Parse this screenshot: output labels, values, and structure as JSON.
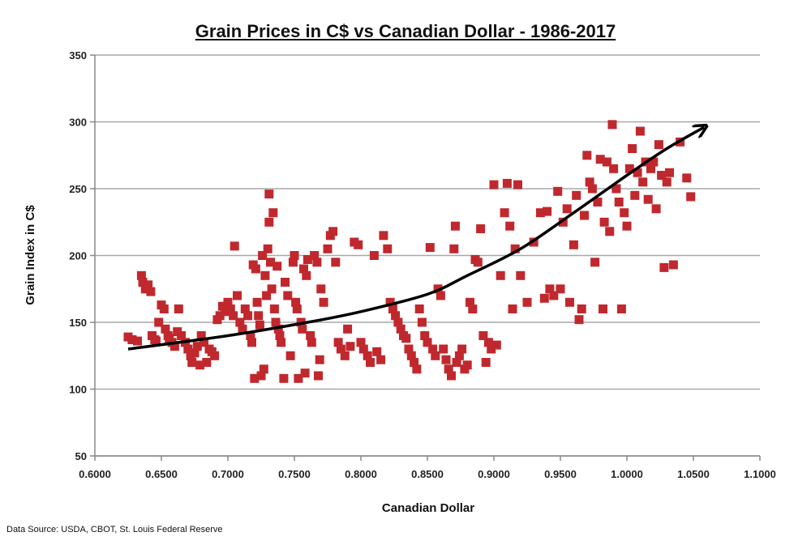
{
  "chart_data": {
    "type": "scatter",
    "title": "Grain Prices in C$ vs Canadian Dollar - 1986-2017",
    "xlabel": "Canadian Dollar",
    "ylabel": "Grain Index in C$",
    "xlim": [
      0.6,
      1.1
    ],
    "ylim": [
      50,
      350
    ],
    "x_ticks": [
      "0.6000",
      "0.6500",
      "0.7000",
      "0.7500",
      "0.8000",
      "0.8500",
      "0.9000",
      "0.9500",
      "1.0000",
      "1.0500",
      "1.1000"
    ],
    "y_ticks": [
      "50",
      "100",
      "150",
      "200",
      "250",
      "300",
      "350"
    ],
    "grid": true,
    "marker_color": "#c0282d",
    "series": [
      {
        "points": [
          [
            0.625,
            139
          ],
          [
            0.628,
            137
          ],
          [
            0.632,
            136
          ],
          [
            0.635,
            185
          ],
          [
            0.636,
            180
          ],
          [
            0.638,
            175
          ],
          [
            0.64,
            178
          ],
          [
            0.642,
            173
          ],
          [
            0.643,
            140
          ],
          [
            0.645,
            137
          ],
          [
            0.646,
            136
          ],
          [
            0.648,
            150
          ],
          [
            0.65,
            163
          ],
          [
            0.652,
            160
          ],
          [
            0.653,
            145
          ],
          [
            0.655,
            140
          ],
          [
            0.656,
            138
          ],
          [
            0.658,
            135
          ],
          [
            0.66,
            132
          ],
          [
            0.662,
            143
          ],
          [
            0.663,
            160
          ],
          [
            0.665,
            140
          ],
          [
            0.668,
            135
          ],
          [
            0.67,
            130
          ],
          [
            0.672,
            125
          ],
          [
            0.673,
            120
          ],
          [
            0.675,
            127
          ],
          [
            0.677,
            132
          ],
          [
            0.679,
            118
          ],
          [
            0.68,
            140
          ],
          [
            0.682,
            135
          ],
          [
            0.684,
            120
          ],
          [
            0.686,
            130
          ],
          [
            0.688,
            128
          ],
          [
            0.69,
            125
          ],
          [
            0.692,
            152
          ],
          [
            0.694,
            155
          ],
          [
            0.696,
            162
          ],
          [
            0.698,
            158
          ],
          [
            0.7,
            165
          ],
          [
            0.702,
            160
          ],
          [
            0.704,
            155
          ],
          [
            0.705,
            207
          ],
          [
            0.707,
            170
          ],
          [
            0.709,
            150
          ],
          [
            0.711,
            145
          ],
          [
            0.713,
            160
          ],
          [
            0.715,
            155
          ],
          [
            0.717,
            140
          ],
          [
            0.718,
            135
          ],
          [
            0.719,
            193
          ],
          [
            0.72,
            108
          ],
          [
            0.721,
            190
          ],
          [
            0.722,
            165
          ],
          [
            0.723,
            155
          ],
          [
            0.724,
            148
          ],
          [
            0.725,
            110
          ],
          [
            0.726,
            200
          ],
          [
            0.727,
            115
          ],
          [
            0.728,
            185
          ],
          [
            0.729,
            170
          ],
          [
            0.73,
            205
          ],
          [
            0.731,
            225
          ],
          [
            0.731,
            246
          ],
          [
            0.732,
            195
          ],
          [
            0.733,
            175
          ],
          [
            0.734,
            232
          ],
          [
            0.735,
            160
          ],
          [
            0.736,
            150
          ],
          [
            0.737,
            192
          ],
          [
            0.738,
            145
          ],
          [
            0.739,
            140
          ],
          [
            0.74,
            135
          ],
          [
            0.742,
            108
          ],
          [
            0.743,
            180
          ],
          [
            0.745,
            170
          ],
          [
            0.747,
            125
          ],
          [
            0.749,
            195
          ],
          [
            0.75,
            200
          ],
          [
            0.751,
            165
          ],
          [
            0.752,
            160
          ],
          [
            0.753,
            108
          ],
          [
            0.755,
            150
          ],
          [
            0.756,
            145
          ],
          [
            0.757,
            190
          ],
          [
            0.758,
            112
          ],
          [
            0.759,
            185
          ],
          [
            0.76,
            197
          ],
          [
            0.762,
            140
          ],
          [
            0.763,
            135
          ],
          [
            0.765,
            200
          ],
          [
            0.767,
            195
          ],
          [
            0.768,
            110
          ],
          [
            0.769,
            122
          ],
          [
            0.77,
            175
          ],
          [
            0.772,
            165
          ],
          [
            0.775,
            205
          ],
          [
            0.777,
            215
          ],
          [
            0.779,
            218
          ],
          [
            0.781,
            195
          ],
          [
            0.783,
            135
          ],
          [
            0.785,
            130
          ],
          [
            0.788,
            125
          ],
          [
            0.79,
            145
          ],
          [
            0.792,
            132
          ],
          [
            0.795,
            210
          ],
          [
            0.798,
            208
          ],
          [
            0.8,
            135
          ],
          [
            0.802,
            130
          ],
          [
            0.805,
            125
          ],
          [
            0.807,
            120
          ],
          [
            0.81,
            200
          ],
          [
            0.812,
            128
          ],
          [
            0.815,
            122
          ],
          [
            0.817,
            215
          ],
          [
            0.82,
            205
          ],
          [
            0.822,
            165
          ],
          [
            0.824,
            160
          ],
          [
            0.826,
            155
          ],
          [
            0.828,
            150
          ],
          [
            0.83,
            145
          ],
          [
            0.832,
            140
          ],
          [
            0.834,
            138
          ],
          [
            0.836,
            130
          ],
          [
            0.838,
            125
          ],
          [
            0.84,
            120
          ],
          [
            0.842,
            115
          ],
          [
            0.844,
            160
          ],
          [
            0.846,
            150
          ],
          [
            0.848,
            140
          ],
          [
            0.85,
            135
          ],
          [
            0.852,
            206
          ],
          [
            0.854,
            130
          ],
          [
            0.856,
            125
          ],
          [
            0.858,
            175
          ],
          [
            0.86,
            170
          ],
          [
            0.862,
            130
          ],
          [
            0.864,
            122
          ],
          [
            0.866,
            115
          ],
          [
            0.868,
            110
          ],
          [
            0.87,
            205
          ],
          [
            0.871,
            222
          ],
          [
            0.872,
            120
          ],
          [
            0.874,
            125
          ],
          [
            0.876,
            130
          ],
          [
            0.878,
            115
          ],
          [
            0.88,
            118
          ],
          [
            0.882,
            165
          ],
          [
            0.884,
            160
          ],
          [
            0.886,
            197
          ],
          [
            0.888,
            195
          ],
          [
            0.89,
            220
          ],
          [
            0.892,
            140
          ],
          [
            0.894,
            120
          ],
          [
            0.896,
            135
          ],
          [
            0.898,
            130
          ],
          [
            0.9,
            253
          ],
          [
            0.902,
            133
          ],
          [
            0.905,
            185
          ],
          [
            0.908,
            232
          ],
          [
            0.91,
            254
          ],
          [
            0.912,
            222
          ],
          [
            0.914,
            160
          ],
          [
            0.916,
            205
          ],
          [
            0.918,
            253
          ],
          [
            0.92,
            185
          ],
          [
            0.925,
            165
          ],
          [
            0.93,
            210
          ],
          [
            0.935,
            232
          ],
          [
            0.938,
            168
          ],
          [
            0.94,
            233
          ],
          [
            0.942,
            175
          ],
          [
            0.945,
            170
          ],
          [
            0.948,
            248
          ],
          [
            0.95,
            175
          ],
          [
            0.952,
            225
          ],
          [
            0.955,
            235
          ],
          [
            0.957,
            165
          ],
          [
            0.96,
            208
          ],
          [
            0.962,
            245
          ],
          [
            0.964,
            152
          ],
          [
            0.966,
            160
          ],
          [
            0.968,
            230
          ],
          [
            0.97,
            275
          ],
          [
            0.972,
            255
          ],
          [
            0.974,
            250
          ],
          [
            0.976,
            195
          ],
          [
            0.978,
            240
          ],
          [
            0.98,
            272
          ],
          [
            0.982,
            160
          ],
          [
            0.983,
            225
          ],
          [
            0.985,
            270
          ],
          [
            0.987,
            218
          ],
          [
            0.989,
            298
          ],
          [
            0.99,
            265
          ],
          [
            0.992,
            250
          ],
          [
            0.994,
            240
          ],
          [
            0.996,
            160
          ],
          [
            0.998,
            232
          ],
          [
            1.0,
            222
          ],
          [
            1.002,
            265
          ],
          [
            1.004,
            280
          ],
          [
            1.006,
            245
          ],
          [
            1.008,
            262
          ],
          [
            1.01,
            293
          ],
          [
            1.012,
            255
          ],
          [
            1.014,
            270
          ],
          [
            1.016,
            242
          ],
          [
            1.018,
            265
          ],
          [
            1.02,
            270
          ],
          [
            1.022,
            235
          ],
          [
            1.024,
            283
          ],
          [
            1.026,
            260
          ],
          [
            1.028,
            191
          ],
          [
            1.03,
            255
          ],
          [
            1.032,
            262
          ],
          [
            1.035,
            193
          ],
          [
            1.04,
            285
          ],
          [
            1.045,
            258
          ],
          [
            1.048,
            244
          ]
        ]
      }
    ],
    "trend_points": [
      [
        0.625,
        130
      ],
      [
        0.7,
        140
      ],
      [
        0.76,
        150
      ],
      [
        0.8,
        158
      ],
      [
        0.85,
        171
      ],
      [
        0.88,
        185
      ],
      [
        0.92,
        205
      ],
      [
        0.96,
        232
      ],
      [
        1.0,
        260
      ],
      [
        1.03,
        280
      ],
      [
        1.058,
        296
      ]
    ]
  },
  "source_note": "Data Source: USDA, CBOT, St. Louis Federal Reserve"
}
